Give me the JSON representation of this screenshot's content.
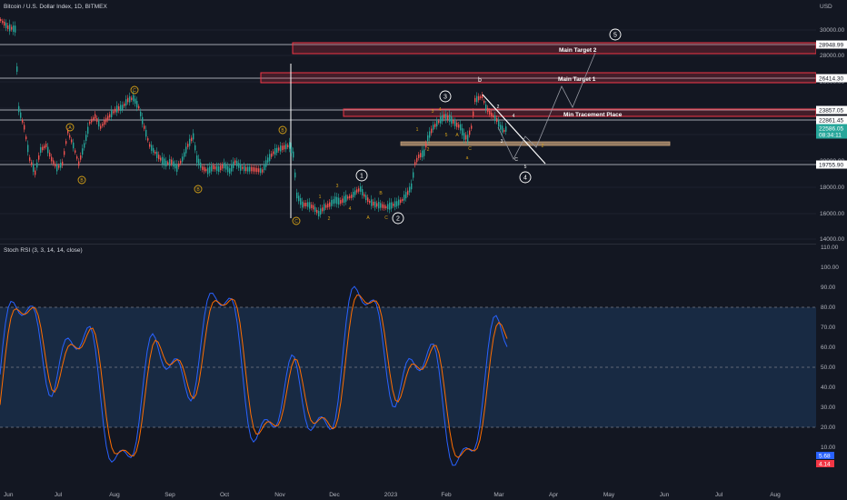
{
  "header": {
    "symbol_title": "Bitcoin / U.S. Dollar Index, 1D, BITMEX",
    "currency": "USD"
  },
  "indicator": {
    "title": "Stoch RSI (3, 3, 14, 14, close)",
    "k_value": "5.68",
    "d_value": "4.14"
  },
  "colors": {
    "background": "#131722",
    "up_candle": "#26a69a",
    "down_candle": "#ef5350",
    "target_zone": "#f23645",
    "support_zone": "#c8a27a",
    "stoch_k": "#2962ff",
    "stoch_d": "#ff6d00",
    "stoch_band": "#1e3a5f",
    "hline": "#d1d4dc",
    "wave_label": "#d4a017"
  },
  "price_axis": {
    "ticks": [
      "30000.00",
      "28000.00",
      "26000.00",
      "24000.00",
      "22000.00",
      "20000.00",
      "18000.00",
      "16000.00",
      "14000.00"
    ],
    "tags": [
      {
        "text": "28948.99",
        "kind": "line"
      },
      {
        "text": "26414.30",
        "kind": "line"
      },
      {
        "text": "23857.05",
        "kind": "line"
      },
      {
        "text": "22861.45",
        "kind": "line"
      },
      {
        "text": "22586.05",
        "kind": "current"
      },
      {
        "text": "08:34:11",
        "kind": "current-time"
      },
      {
        "text": "19755.90",
        "kind": "line"
      }
    ]
  },
  "stoch_axis": {
    "ticks": [
      "110.00",
      "100.00",
      "90.00",
      "80.00",
      "70.00",
      "60.00",
      "50.00",
      "40.00",
      "30.00",
      "20.00",
      "10.00"
    ]
  },
  "time_axis": {
    "labels": [
      "Jun",
      "Jul",
      "Aug",
      "Sep",
      "Oct",
      "Nov",
      "Dec",
      "2023",
      "Feb",
      "Mar",
      "Apr",
      "May",
      "Jun",
      "Jul",
      "Aug"
    ]
  },
  "zones": {
    "main_target_2": "Main Target 2",
    "main_target_1": "Main Target 1",
    "min_retracement": "Min Tracement Place"
  },
  "wave_labels": {
    "circled": [
      "A",
      "B",
      "C",
      "B",
      "C",
      "A",
      "B",
      "1",
      "2",
      "3",
      "4",
      "5"
    ],
    "small": [
      "1",
      "2",
      "3",
      "4",
      "5",
      "A",
      "B",
      "C",
      "a",
      "b",
      "c",
      "1",
      "2",
      "3",
      "4",
      "5",
      "a",
      "b",
      "c",
      "A",
      "B",
      "C",
      "D",
      "E"
    ]
  }
}
